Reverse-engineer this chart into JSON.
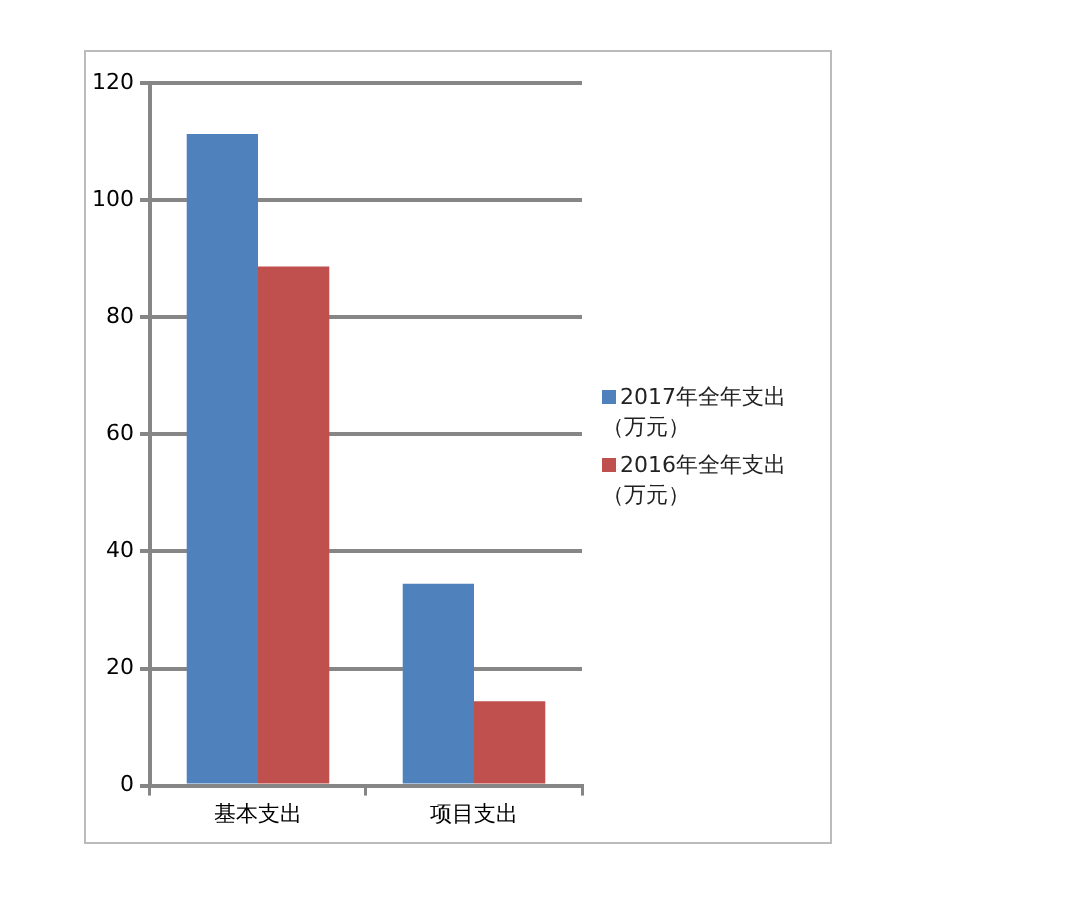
{
  "chart_data": {
    "type": "bar",
    "categories": [
      "基本支出",
      "项目支出"
    ],
    "series": [
      {
        "name": "2017年全年支出（万元）",
        "color": "#4f81bd",
        "values": [
          111.3,
          34.5
        ]
      },
      {
        "name": "2016年全年支出（万元）",
        "color": "#c0504d",
        "values": [
          88.7,
          14.4
        ]
      }
    ],
    "ylim": [
      0,
      120
    ],
    "yticks": [
      0,
      20,
      40,
      60,
      80,
      100,
      120
    ],
    "grid": "y",
    "legend": "right"
  }
}
